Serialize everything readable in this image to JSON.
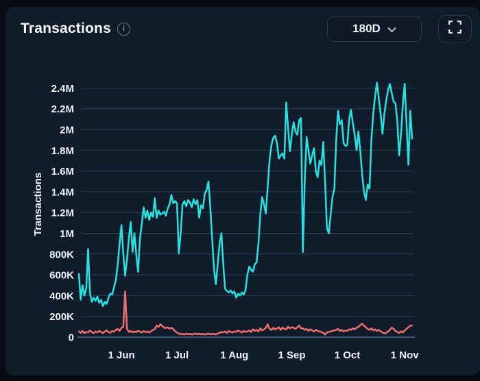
{
  "page": {
    "background": "#070b11",
    "card_background": "#111c2a"
  },
  "header": {
    "title": "Transactions",
    "info_icon": "info-circle",
    "range_selector": {
      "label": "180D",
      "chevron_icon": "chevron-down"
    },
    "fullscreen_icon": "fullscreen-expand"
  },
  "chart_data": {
    "type": "line",
    "title": "Transactions",
    "xlabel": "",
    "ylabel": "Transactions",
    "unit_note": "daily transaction counts, values stored in thousands (K)",
    "range": "180D",
    "n_points": 181,
    "grid": "horizontal",
    "legend": "none",
    "ylim_k": [
      0,
      2520
    ],
    "y_ticks": [
      {
        "label": "0",
        "value": 0
      },
      {
        "label": "200K",
        "value": 200
      },
      {
        "label": "400K",
        "value": 400
      },
      {
        "label": "600K",
        "value": 600
      },
      {
        "label": "800K",
        "value": 800
      },
      {
        "label": "1M",
        "value": 1000
      },
      {
        "label": "1.2M",
        "value": 1200
      },
      {
        "label": "1.4M",
        "value": 1400
      },
      {
        "label": "1.6M",
        "value": 1600
      },
      {
        "label": "1.8M",
        "value": 1800
      },
      {
        "label": "2M",
        "value": 2000
      },
      {
        "label": "2.2M",
        "value": 2200
      },
      {
        "label": "2.4M",
        "value": 2400
      }
    ],
    "x_ticks": [
      {
        "label": "1 Jun",
        "day": 23
      },
      {
        "label": "1 Jul",
        "day": 53
      },
      {
        "label": "1 Aug",
        "day": 84
      },
      {
        "label": "1 Sep",
        "day": 115
      },
      {
        "label": "1 Oct",
        "day": 145
      },
      {
        "label": "1 Nov",
        "day": 176
      }
    ],
    "series": [
      {
        "id": "primary",
        "color": "#25e2e2",
        "values_k": [
          610,
          360,
          500,
          400,
          470,
          850,
          420,
          340,
          380,
          350,
          390,
          330,
          360,
          300,
          340,
          320,
          380,
          420,
          410,
          480,
          550,
          700,
          900,
          1080,
          800,
          590,
          750,
          950,
          1110,
          820,
          1000,
          800,
          630,
          950,
          1090,
          1250,
          1150,
          1220,
          1130,
          1200,
          1160,
          1340,
          1150,
          1220,
          1180,
          1190,
          1210,
          1170,
          1240,
          1280,
          1370,
          1290,
          1310,
          1290,
          805,
          1000,
          1280,
          1310,
          1260,
          1320,
          1300,
          1250,
          1330,
          1280,
          1320,
          1150,
          1270,
          1240,
          1380,
          1420,
          1500,
          1250,
          950,
          650,
          510,
          700,
          900,
          1000,
          700,
          465,
          445,
          430,
          450,
          420,
          440,
          380,
          420,
          400,
          430,
          410,
          450,
          600,
          680,
          650,
          630,
          700,
          720,
          900,
          1180,
          1350,
          1280,
          1190,
          1450,
          1700,
          1850,
          1920,
          1940,
          1870,
          1720,
          1750,
          1770,
          1720,
          2260,
          2020,
          1790,
          1950,
          2070,
          1980,
          1950,
          2090,
          2110,
          820,
          1500,
          1930,
          1800,
          1670,
          1750,
          1820,
          1600,
          1540,
          1700,
          1660,
          1880,
          1500,
          1050,
          1000,
          1180,
          1350,
          1430,
          1900,
          2180,
          2050,
          2090,
          1870,
          1840,
          1850,
          2100,
          2190,
          2060,
          1950,
          1800,
          1980,
          1800,
          1570,
          1400,
          1320,
          1470,
          1430,
          1900,
          2150,
          2320,
          2450,
          2300,
          2150,
          1960,
          2150,
          2280,
          2380,
          2440,
          2350,
          2270,
          2250,
          2080,
          1750,
          1950,
          2250,
          2440,
          2050,
          1660,
          2180,
          1910
        ]
      },
      {
        "id": "secondary",
        "color": "#ef6f6f",
        "values_k": [
          55,
          40,
          60,
          38,
          50,
          45,
          65,
          48,
          38,
          55,
          45,
          60,
          50,
          38,
          55,
          65,
          48,
          42,
          60,
          52,
          70,
          80,
          60,
          90,
          100,
          440,
          80,
          50,
          60,
          45,
          55,
          48,
          62,
          52,
          44,
          58,
          48,
          54,
          44,
          58,
          68,
          78,
          112,
          98,
          125,
          108,
          92,
          88,
          95,
          82,
          90,
          78,
          58,
          44,
          34,
          30,
          30,
          25,
          34,
          28,
          32,
          26,
          30,
          35,
          28,
          33,
          27,
          31,
          25,
          30,
          34,
          28,
          32,
          30,
          26,
          35,
          40,
          50,
          45,
          55,
          40,
          60,
          50,
          45,
          55,
          50,
          65,
          55,
          45,
          60,
          50,
          55,
          65,
          50,
          75,
          60,
          70,
          55,
          85,
          65,
          75,
          90,
          125,
          80,
          70,
          90,
          75,
          85,
          95,
          70,
          92,
          80,
          75,
          100,
          85,
          95,
          90,
          80,
          95,
          112,
          85,
          85,
          70,
          80,
          60,
          75,
          65,
          55,
          70,
          60,
          55,
          50,
          40,
          26,
          45,
          50,
          55,
          60,
          65,
          70,
          80,
          60,
          70,
          55,
          65,
          60,
          75,
          70,
          85,
          75,
          90,
          100,
          115,
          130,
          110,
          95,
          80,
          70,
          85,
          65,
          75,
          60,
          70,
          55,
          45,
          35,
          40,
          55,
          70,
          92,
          80,
          60,
          50,
          40,
          55,
          45,
          65,
          80,
          95,
          110,
          112
        ]
      }
    ],
    "colors": {
      "grid": "#2a4158",
      "axis_line": "#3a5875",
      "tick_text": "#eef2f7"
    }
  }
}
